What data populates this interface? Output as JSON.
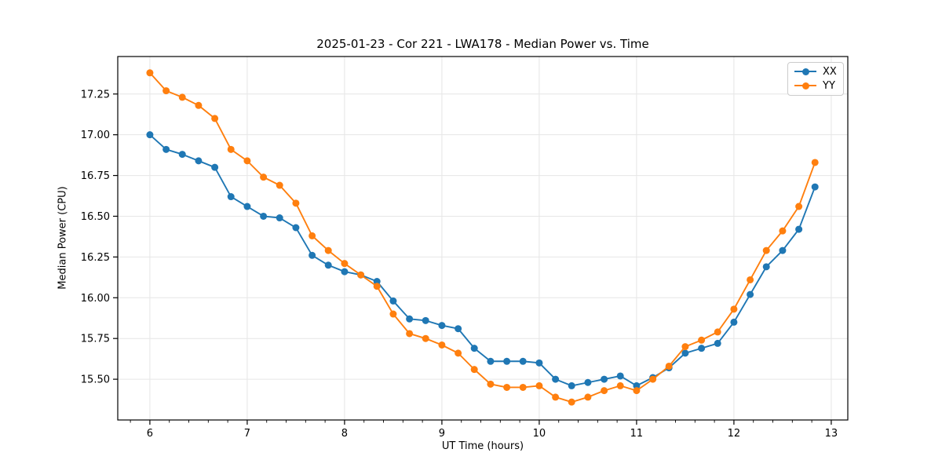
{
  "title": "2025-01-23 - Cor 221 - LWA178 - Median Power vs. Time",
  "chart_data": {
    "type": "line",
    "title": "2025-01-23 - Cor 221 - LWA178 - Median Power vs. Time",
    "xlabel": "UT Time (hours)",
    "ylabel": "Median Power (CPU)",
    "xlim": [
      5.67,
      13.17
    ],
    "ylim": [
      15.25,
      17.48
    ],
    "xticks": [
      6,
      7,
      8,
      9,
      10,
      11,
      12,
      13
    ],
    "yticks": [
      15.5,
      15.75,
      16.0,
      16.25,
      16.5,
      16.75,
      17.0,
      17.25
    ],
    "x_minor_step": 0.2,
    "grid": true,
    "grid_color": "#e6e6e6",
    "spine_color": "#000000",
    "legend_position": "upper right",
    "marker": "o",
    "x": [
      6.0,
      6.167,
      6.333,
      6.5,
      6.667,
      6.833,
      7.0,
      7.167,
      7.333,
      7.5,
      7.667,
      7.833,
      8.0,
      8.167,
      8.333,
      8.5,
      8.667,
      8.833,
      9.0,
      9.167,
      9.333,
      9.5,
      9.667,
      9.833,
      10.0,
      10.167,
      10.333,
      10.5,
      10.667,
      10.833,
      11.0,
      11.167,
      11.333,
      11.5,
      11.667,
      11.833,
      12.0,
      12.167,
      12.333,
      12.5,
      12.667,
      12.833
    ],
    "series": [
      {
        "name": "XX",
        "color": "#1f77b4",
        "values": [
          17.0,
          16.91,
          16.88,
          16.84,
          16.8,
          16.62,
          16.56,
          16.5,
          16.49,
          16.43,
          16.26,
          16.2,
          16.16,
          16.14,
          16.1,
          15.98,
          15.87,
          15.86,
          15.83,
          15.81,
          15.69,
          15.61,
          15.61,
          15.61,
          15.6,
          15.5,
          15.46,
          15.48,
          15.5,
          15.52,
          15.46,
          15.51,
          15.57,
          15.66,
          15.69,
          15.72,
          15.85,
          16.02,
          16.19,
          16.29,
          16.42,
          16.68
        ]
      },
      {
        "name": "YY",
        "color": "#ff7f0e",
        "values": [
          17.38,
          17.27,
          17.23,
          17.18,
          17.1,
          16.91,
          16.84,
          16.74,
          16.69,
          16.58,
          16.38,
          16.29,
          16.21,
          16.14,
          16.07,
          15.9,
          15.78,
          15.75,
          15.71,
          15.66,
          15.56,
          15.47,
          15.45,
          15.45,
          15.46,
          15.39,
          15.36,
          15.39,
          15.43,
          15.46,
          15.43,
          15.5,
          15.58,
          15.7,
          15.74,
          15.79,
          15.93,
          16.11,
          16.29,
          16.41,
          16.56,
          16.83
        ]
      }
    ]
  }
}
